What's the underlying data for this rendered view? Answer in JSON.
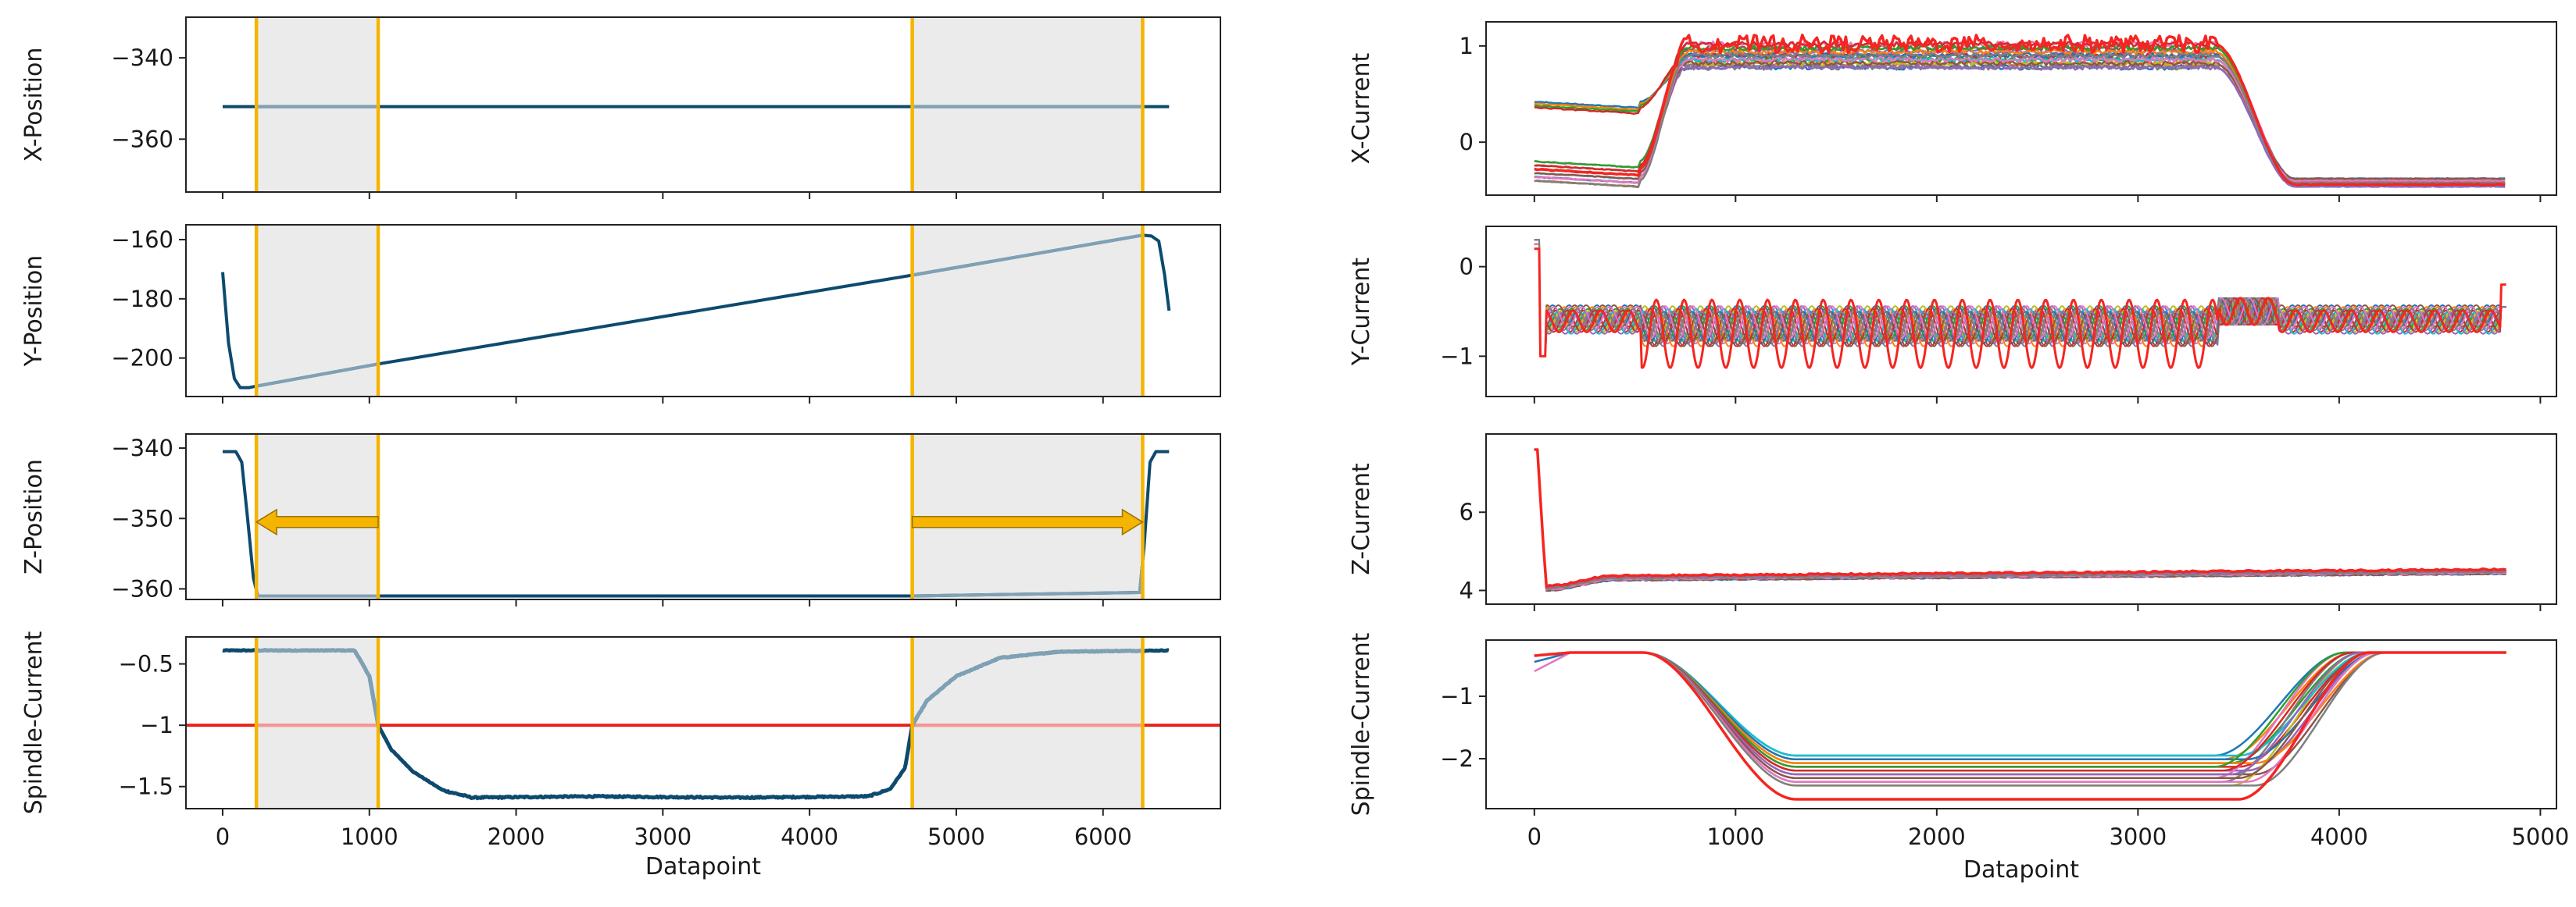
{
  "chart_data": [
    {
      "type": "line",
      "panel": "left",
      "xlabel": "Datapoint",
      "xlim": [
        -250,
        6800
      ],
      "xticks": [
        0,
        1000,
        2000,
        3000,
        4000,
        5000,
        6000
      ],
      "shaded_regions": [
        [
          230,
          1060
        ],
        [
          4700,
          6270
        ]
      ],
      "region_boundaries": [
        230,
        1060,
        4700,
        6270
      ],
      "colors": {
        "line": "#0d4a6e",
        "line_light": "#7fa1b5",
        "boundary": "#f5b400",
        "shade": "#ebebeb",
        "threshold": "#e8221b",
        "threshold_light": "#f49995",
        "arrow": "#f5b400"
      },
      "subplots": [
        {
          "ylabel": "X-Position",
          "ylim": [
            -373,
            -330
          ],
          "yticks": [
            -340,
            -360
          ],
          "series": [
            {
              "name": "X-Position",
              "x": [
                0,
                6450
              ],
              "y": [
                -352,
                -352
              ]
            }
          ]
        },
        {
          "ylabel": "Y-Position",
          "ylim": [
            -213,
            -155
          ],
          "yticks": [
            -160,
            -180,
            -200
          ],
          "series": [
            {
              "name": "Y-Position",
              "x": [
                0,
                40,
                80,
                120,
                180,
                230,
                1060,
                4700,
                6270,
                6330,
                6380,
                6420,
                6450
              ],
              "y": [
                -171,
                -195,
                -207,
                -210,
                -210,
                -209.5,
                -202,
                -172,
                -158.5,
                -158.8,
                -160.5,
                -172,
                -184
              ]
            }
          ]
        },
        {
          "ylabel": "Z-Position",
          "ylim": [
            -361.5,
            -338
          ],
          "yticks": [
            -340,
            -350,
            -360
          ],
          "arrows": [
            {
              "from": 1060,
              "to": 230,
              "y": -350.5
            },
            {
              "from": 4700,
              "to": 6270,
              "y": -350.5
            }
          ],
          "series": [
            {
              "name": "Z-Position",
              "x": [
                0,
                90,
                130,
                170,
                210,
                240,
                1060,
                4700,
                6250,
                6280,
                6320,
                6360,
                6450
              ],
              "y": [
                -340.5,
                -340.5,
                -342,
                -350,
                -358.5,
                -361,
                -361,
                -361,
                -360.5,
                -354,
                -342,
                -340.5,
                -340.5
              ]
            }
          ]
        },
        {
          "ylabel": "Spindle-Current",
          "ylim": [
            -1.68,
            -0.28
          ],
          "yticks": [
            -0.5,
            -1.0,
            -1.5
          ],
          "threshold": -1.0,
          "series": [
            {
              "name": "Spindle-Current",
              "x": [
                0,
                900,
                1000,
                1060,
                1150,
                1300,
                1500,
                1700,
                2500,
                3500,
                4400,
                4550,
                4650,
                4700,
                4800,
                5000,
                5300,
                5700,
                6450
              ],
              "y": [
                -0.39,
                -0.39,
                -0.6,
                -1.0,
                -1.2,
                -1.38,
                -1.53,
                -1.59,
                -1.58,
                -1.59,
                -1.58,
                -1.52,
                -1.35,
                -1.0,
                -0.8,
                -0.6,
                -0.45,
                -0.4,
                -0.39
              ]
            }
          ]
        }
      ]
    },
    {
      "type": "line",
      "panel": "right",
      "xlabel": "Datapoint",
      "xlim": [
        -240,
        5080
      ],
      "xticks": [
        0,
        1000,
        2000,
        3000,
        4000,
        5000
      ],
      "note": "many overlapping colored runs (~30 series)",
      "subplots": [
        {
          "ylabel": "X-Current",
          "ylim": [
            -0.55,
            1.25
          ],
          "yticks": [
            1,
            0
          ]
        },
        {
          "ylabel": "Y-Current",
          "ylim": [
            -1.45,
            0.45
          ],
          "yticks": [
            0,
            -1
          ]
        },
        {
          "ylabel": "Z-Current",
          "ylim": [
            3.65,
            8.0
          ],
          "yticks": [
            6,
            4
          ]
        },
        {
          "ylabel": "Spindle-Current",
          "ylim": [
            -2.8,
            -0.1
          ],
          "yticks": [
            -1,
            -2
          ]
        }
      ]
    }
  ]
}
